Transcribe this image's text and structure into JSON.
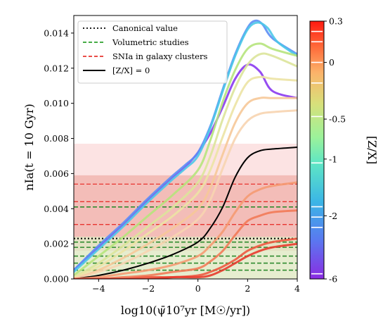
{
  "chart_data": {
    "type": "line",
    "xlabel": "log10(ψ̄10⁷yr [M☉/yr])",
    "ylabel": "nIa(t = 10 Gyr)",
    "xlim": [
      -5,
      4
    ],
    "ylim": [
      0,
      0.015
    ],
    "x_ticks": [
      -4,
      -2,
      0,
      2,
      4
    ],
    "x_tick_labels": [
      "−4",
      "−2",
      "0",
      "2",
      "4"
    ],
    "y_ticks": [
      0,
      0.002,
      0.004,
      0.006,
      0.008,
      0.01,
      0.012,
      0.014
    ],
    "y_tick_labels": [
      "0.000",
      "0.002",
      "0.004",
      "0.006",
      "0.008",
      "0.010",
      "0.012",
      "0.014"
    ],
    "grid": false,
    "legend_placement": "top-left",
    "legend": [
      {
        "label": "Canonical value",
        "color": "#000000",
        "style": "dotted"
      },
      {
        "label": "Volumetric studies",
        "color": "#2ca02c",
        "style": "dashed"
      },
      {
        "label": "SNIa in galaxy clusters",
        "color": "#e8342f",
        "style": "dashed"
      },
      {
        "label": "[Z/X] = 0",
        "color": "#000000",
        "style": "solid"
      }
    ],
    "colorbar": {
      "label": "[Z/X]",
      "ticks": [
        "0.3",
        "0",
        "-0.5",
        "-1",
        "-2",
        "-6"
      ],
      "tick_fractions": [
        1.0,
        0.84,
        0.62,
        0.465,
        0.245,
        0.0
      ],
      "white_line_fractions": [
        0.96,
        0.92,
        0.84,
        0.76,
        0.63,
        0.45,
        0.28,
        0.24,
        0.2,
        0.02
      ]
    },
    "bands": [
      {
        "name": "clusters-outer",
        "y": [
          0.0,
          0.0077
        ],
        "color": "#fbdada"
      },
      {
        "name": "clusters-inner",
        "y": [
          0.0016,
          0.0059
        ],
        "color": "#f0b0aa"
      },
      {
        "name": "volumetric",
        "y": [
          0.0,
          0.0024
        ],
        "color": "#dff0c8"
      }
    ],
    "hlines": {
      "canonical": [
        0.0023
      ],
      "volumetric": [
        0.0005,
        0.0009,
        0.0013,
        0.0018,
        0.0021,
        0.0041
      ],
      "clusters": [
        0.0031,
        0.0044,
        0.0054
      ]
    },
    "series": [
      {
        "color": "#8a38ef",
        "x": [
          -5,
          -4,
          -3,
          -2,
          -1,
          -0.5,
          0,
          0.5,
          1,
          1.5,
          2,
          2.5,
          3,
          4
        ],
        "y": [
          0.0005,
          0.0018,
          0.0031,
          0.0045,
          0.0058,
          0.0064,
          0.0072,
          0.0083,
          0.0098,
          0.0114,
          0.0122,
          0.0118,
          0.0107,
          0.0103
        ]
      },
      {
        "color": "#5c8ef5",
        "x": [
          -5,
          -4,
          -3,
          -2,
          -1,
          -0.5,
          0,
          0.5,
          1,
          1.5,
          2,
          2.3,
          2.6,
          3,
          4
        ],
        "y": [
          0.0005,
          0.0019,
          0.0032,
          0.0046,
          0.0059,
          0.0065,
          0.0072,
          0.0087,
          0.0108,
          0.0128,
          0.0143,
          0.0147,
          0.0145,
          0.0137,
          0.0128
        ]
      },
      {
        "color": "#4cc8e8",
        "x": [
          -5,
          -4,
          -3,
          -2,
          -1,
          -0.5,
          0,
          0.5,
          1,
          1.5,
          2,
          2.4,
          2.8,
          3.2,
          4
        ],
        "y": [
          0.0004,
          0.0017,
          0.003,
          0.0044,
          0.0057,
          0.0063,
          0.007,
          0.0086,
          0.0107,
          0.0127,
          0.0142,
          0.0146,
          0.0143,
          0.0135,
          0.0127
        ]
      },
      {
        "color": "#b6e47c",
        "x": [
          -5,
          -4,
          -3,
          -2,
          -1,
          0,
          0.5,
          1,
          1.5,
          2,
          2.5,
          3,
          4
        ],
        "y": [
          0.0002,
          0.0013,
          0.0024,
          0.0036,
          0.0048,
          0.0062,
          0.0079,
          0.0101,
          0.0119,
          0.0131,
          0.0134,
          0.0131,
          0.0127
        ]
      },
      {
        "color": "#dbe49a",
        "x": [
          -5,
          -4,
          -3,
          -2,
          -1,
          0,
          0.5,
          1,
          1.5,
          2,
          2.5,
          3,
          4
        ],
        "y": [
          0.0001,
          0.0009,
          0.0019,
          0.003,
          0.0041,
          0.0055,
          0.007,
          0.0091,
          0.0109,
          0.0122,
          0.0128,
          0.0127,
          0.0121
        ]
      },
      {
        "color": "#ece3a4",
        "x": [
          -5,
          -4,
          -3,
          -2,
          -1,
          0,
          0.5,
          1,
          1.5,
          2,
          2.5,
          3,
          4
        ],
        "y": [
          0.0001,
          0.0007,
          0.0016,
          0.0026,
          0.0036,
          0.0049,
          0.0062,
          0.0081,
          0.0099,
          0.0112,
          0.0115,
          0.0114,
          0.0113
        ]
      },
      {
        "color": "#f6c898",
        "x": [
          -5,
          -4,
          -3,
          -2,
          -1,
          0,
          0.5,
          1,
          1.5,
          2,
          2.5,
          3,
          4
        ],
        "y": [
          0.0,
          0.0005,
          0.0012,
          0.002,
          0.0029,
          0.004,
          0.0052,
          0.0071,
          0.0089,
          0.01,
          0.0103,
          0.0103,
          0.0103
        ]
      },
      {
        "color": "#f7d4b0",
        "x": [
          -5,
          -4,
          -3,
          -2,
          -1,
          0,
          0.5,
          1,
          1.5,
          2,
          2.5,
          3,
          4
        ],
        "y": [
          0.0,
          0.0004,
          0.0009,
          0.0016,
          0.0024,
          0.0034,
          0.0045,
          0.0063,
          0.008,
          0.009,
          0.0094,
          0.0095,
          0.0096
        ]
      },
      {
        "color": "#000000",
        "x": [
          -5,
          -4,
          -3,
          -2,
          -1,
          0,
          0.5,
          1,
          1.5,
          2,
          2.5,
          3,
          4
        ],
        "y": [
          0.0,
          0.0002,
          0.0005,
          0.0009,
          0.0014,
          0.0021,
          0.0029,
          0.0041,
          0.0058,
          0.0069,
          0.0073,
          0.0074,
          0.0075
        ]
      },
      {
        "color": "#f59a72",
        "x": [
          -5,
          -4,
          -3,
          -2,
          -1,
          0,
          0.5,
          1,
          1.5,
          2,
          2.5,
          3,
          4
        ],
        "y": [
          0.0,
          0.0001,
          0.0003,
          0.0005,
          0.0008,
          0.0013,
          0.0019,
          0.0027,
          0.0038,
          0.0047,
          0.0051,
          0.0053,
          0.0055
        ]
      },
      {
        "color": "#f27a58",
        "x": [
          -5,
          -4,
          -3,
          -2,
          -1,
          0,
          0.5,
          1,
          1.5,
          2,
          2.5,
          3,
          4
        ],
        "y": [
          0.0,
          0.0,
          0.0001,
          0.0002,
          0.0004,
          0.0006,
          0.001,
          0.0016,
          0.0025,
          0.0033,
          0.0036,
          0.0038,
          0.0039
        ]
      },
      {
        "color": "#ee5840",
        "x": [
          -5,
          -4,
          -3,
          -2,
          -1,
          0,
          0.5,
          1,
          1.5,
          2,
          2.5,
          3,
          4
        ],
        "y": [
          0.0,
          0.0,
          0.0,
          0.0001,
          0.0001,
          0.0002,
          0.0004,
          0.0007,
          0.0011,
          0.0016,
          0.0019,
          0.0021,
          0.0023
        ]
      },
      {
        "color": "#e83a2c",
        "x": [
          -5,
          -4,
          -3,
          -2,
          -1,
          0,
          0.5,
          1,
          1.5,
          2,
          2.5,
          3,
          4
        ],
        "y": [
          0.0,
          0.0,
          0.0,
          0.0,
          0.0001,
          0.0001,
          0.0002,
          0.0005,
          0.0009,
          0.0013,
          0.0016,
          0.0018,
          0.002
        ]
      }
    ]
  }
}
